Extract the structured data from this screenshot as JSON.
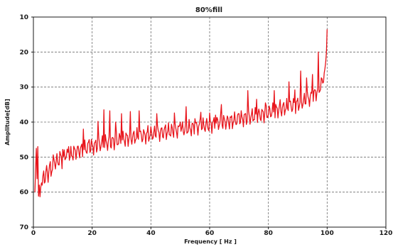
{
  "chart_data": {
    "type": "line",
    "title": "80%fill",
    "xlabel": "Frequency [ Hz ]",
    "ylabel": "Amplitude[dB]",
    "xlim": [
      0,
      120
    ],
    "ylim": [
      10,
      70
    ],
    "y_inverted": true,
    "x_ticks": [
      0,
      20,
      40,
      60,
      80,
      100,
      120
    ],
    "y_ticks": [
      10,
      20,
      30,
      40,
      50,
      60,
      70
    ],
    "grid": true,
    "grid_style": "dashed",
    "series": [
      {
        "color": "#e8141b",
        "x": [
          0.5,
          0.8,
          1.0,
          1.2,
          1.5,
          1.8,
          2.0,
          2.3,
          2.6,
          3.0,
          3.5,
          4.0,
          4.5,
          5.0,
          5.5,
          6.0,
          7.0,
          8.0,
          9.0,
          10.0,
          11.0,
          12.0,
          14.0,
          16.0,
          18.0,
          20.0,
          22.0,
          24.0,
          26.0,
          28.0,
          30.0,
          32.0,
          35.0,
          38.0,
          40.0,
          42.0,
          45.0,
          48.0,
          50.0,
          52.0,
          55.0,
          58.0,
          60.0,
          62.0,
          65.0,
          68.0,
          70.0,
          72.0,
          75.0,
          78.0,
          80.0,
          82.0,
          85.0,
          88.0,
          90.0,
          92.0,
          94.0,
          95.0,
          96.0,
          97.0,
          98.0,
          98.5,
          99.0,
          99.3,
          99.6,
          99.8,
          100.0
        ],
        "values": [
          60,
          52,
          61,
          58,
          47,
          64,
          58,
          62,
          57,
          58,
          55,
          56,
          54,
          55,
          53,
          54,
          51,
          52,
          50,
          51,
          49,
          50,
          48.5,
          48,
          47.5,
          47,
          46.5,
          46,
          45.8,
          45.4,
          45,
          44.6,
          44.2,
          43.8,
          43.5,
          43.2,
          42.8,
          42.5,
          42.2,
          41.9,
          41.5,
          41.1,
          40.8,
          40.4,
          40,
          39.6,
          39.2,
          38.8,
          38.3,
          37.8,
          37.3,
          36.8,
          36.1,
          35.4,
          34.8,
          34.1,
          33.2,
          32.6,
          31.8,
          30.8,
          29.3,
          28.0,
          26.0,
          24.5,
          22.0,
          19.5,
          13.5
        ]
      }
    ],
    "spikes": {
      "x": [
        1.0,
        8.0,
        10.0,
        12.0,
        17.0,
        19.0,
        22.0,
        24.0,
        26.0,
        28.0,
        30.0,
        33.0,
        36.0,
        39.0,
        42.0,
        45.0,
        48.0,
        50.0,
        52.0,
        55.0,
        57.0,
        60.0,
        62.0,
        64.0,
        67.0,
        70.0,
        73.0,
        76.0,
        79.0,
        82.0,
        84.0,
        87.0,
        89.0,
        91.0,
        93.0,
        95.0,
        97.0
      ],
      "values": [
        47.5,
        49,
        47.8,
        47,
        42,
        45,
        39.8,
        36.5,
        36.8,
        40,
        37.6,
        37,
        36.8,
        41,
        37.6,
        40.8,
        37.4,
        40,
        35.6,
        39,
        37.2,
        37.4,
        38,
        35,
        38.5,
        37.6,
        31,
        33.5,
        34.5,
        31,
        33.6,
        28.5,
        30.8,
        25.4,
        27.4,
        26.4,
        20
      ]
    }
  }
}
